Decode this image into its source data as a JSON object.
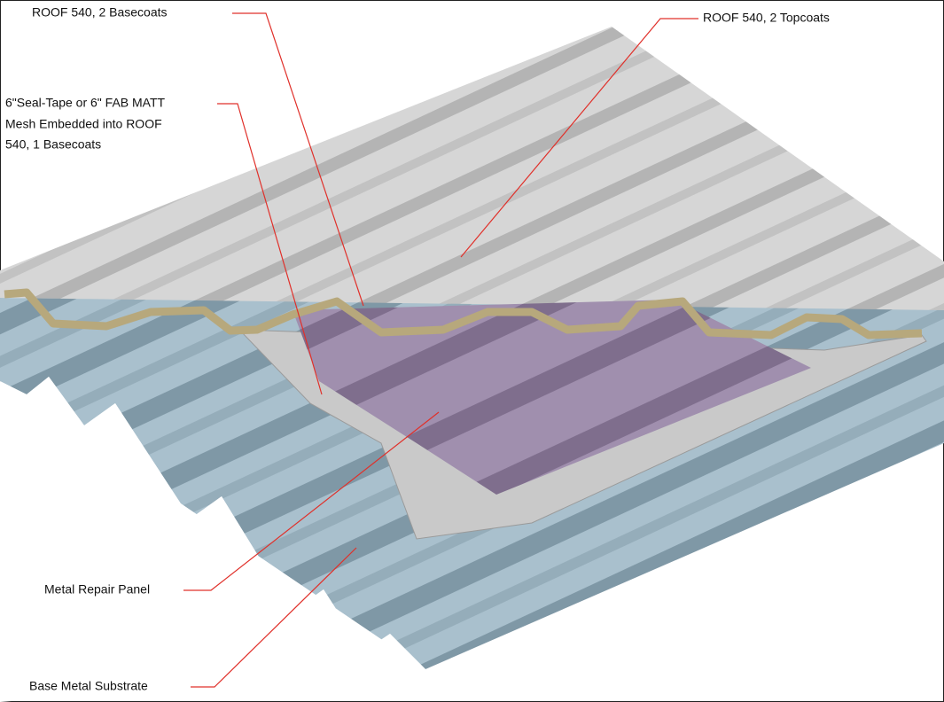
{
  "labels": [
    {
      "text": "ROOF 540, 2 Basecoats"
    },
    {
      "text": "ROOF 540, 2 Topcoats"
    },
    {
      "lines": [
        "6\"Seal-Tape or 6\" FAB MATT",
        "Mesh Embedded into ROOF",
        "540, 1 Basecoats"
      ]
    },
    {
      "text": "Metal Repair Panel"
    },
    {
      "text": "Base Metal Substrate"
    }
  ]
}
